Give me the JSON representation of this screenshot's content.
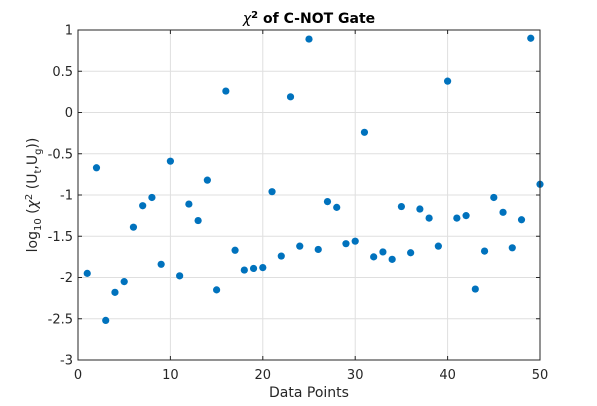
{
  "chart_data": {
    "type": "scatter",
    "title": {
      "chi": "χ",
      "sup": "2",
      "rest": " of C-NOT Gate"
    },
    "xlabel": "Data Points",
    "ylabel": {
      "log": "log",
      "log_sub": "10",
      "open": " (",
      "chi": "χ",
      "chi_sup": "2",
      "args_open": " (U",
      "t_sub": "t",
      "comma": ",U",
      "g_sub": "g",
      "close": "))"
    },
    "xlim": [
      0,
      50
    ],
    "ylim": [
      -3,
      1
    ],
    "xticks": [
      0,
      10,
      20,
      30,
      40,
      50
    ],
    "xtick_labels": [
      "0",
      "10",
      "20",
      "30",
      "40",
      "50"
    ],
    "yticks": [
      -3,
      -2.5,
      -2,
      -1.5,
      -1,
      -0.5,
      0,
      0.5,
      1
    ],
    "ytick_labels": [
      "-3",
      "-2.5",
      "-2",
      "-1.5",
      "-1",
      "-0.5",
      "0",
      "0.5",
      "1"
    ],
    "grid": true,
    "marker_color": "#0072BD",
    "x": [
      1,
      2,
      3,
      4,
      5,
      6,
      7,
      8,
      9,
      10,
      11,
      12,
      13,
      14,
      15,
      16,
      17,
      18,
      19,
      20,
      21,
      22,
      23,
      24,
      25,
      26,
      27,
      28,
      29,
      30,
      31,
      32,
      33,
      34,
      35,
      36,
      37,
      38,
      39,
      40,
      41,
      42,
      43,
      44,
      45,
      46,
      47,
      48,
      49,
      50
    ],
    "y": [
      -1.95,
      -0.67,
      -2.52,
      -2.18,
      -2.05,
      -1.39,
      -1.13,
      -1.03,
      -1.84,
      -0.59,
      -1.98,
      -1.11,
      -1.31,
      -0.82,
      -2.15,
      0.26,
      -1.67,
      -1.91,
      -1.89,
      -1.88,
      -0.96,
      -1.74,
      0.19,
      -1.62,
      0.89,
      -1.66,
      -1.08,
      -1.15,
      -1.59,
      -1.56,
      -0.24,
      -1.75,
      -1.69,
      -1.78,
      -1.14,
      -1.7,
      -1.17,
      -1.28,
      -1.62,
      0.38,
      -1.28,
      -1.25,
      -2.14,
      -1.68,
      -1.03,
      -1.21,
      -1.64,
      -1.3,
      0.9,
      -0.87
    ]
  }
}
